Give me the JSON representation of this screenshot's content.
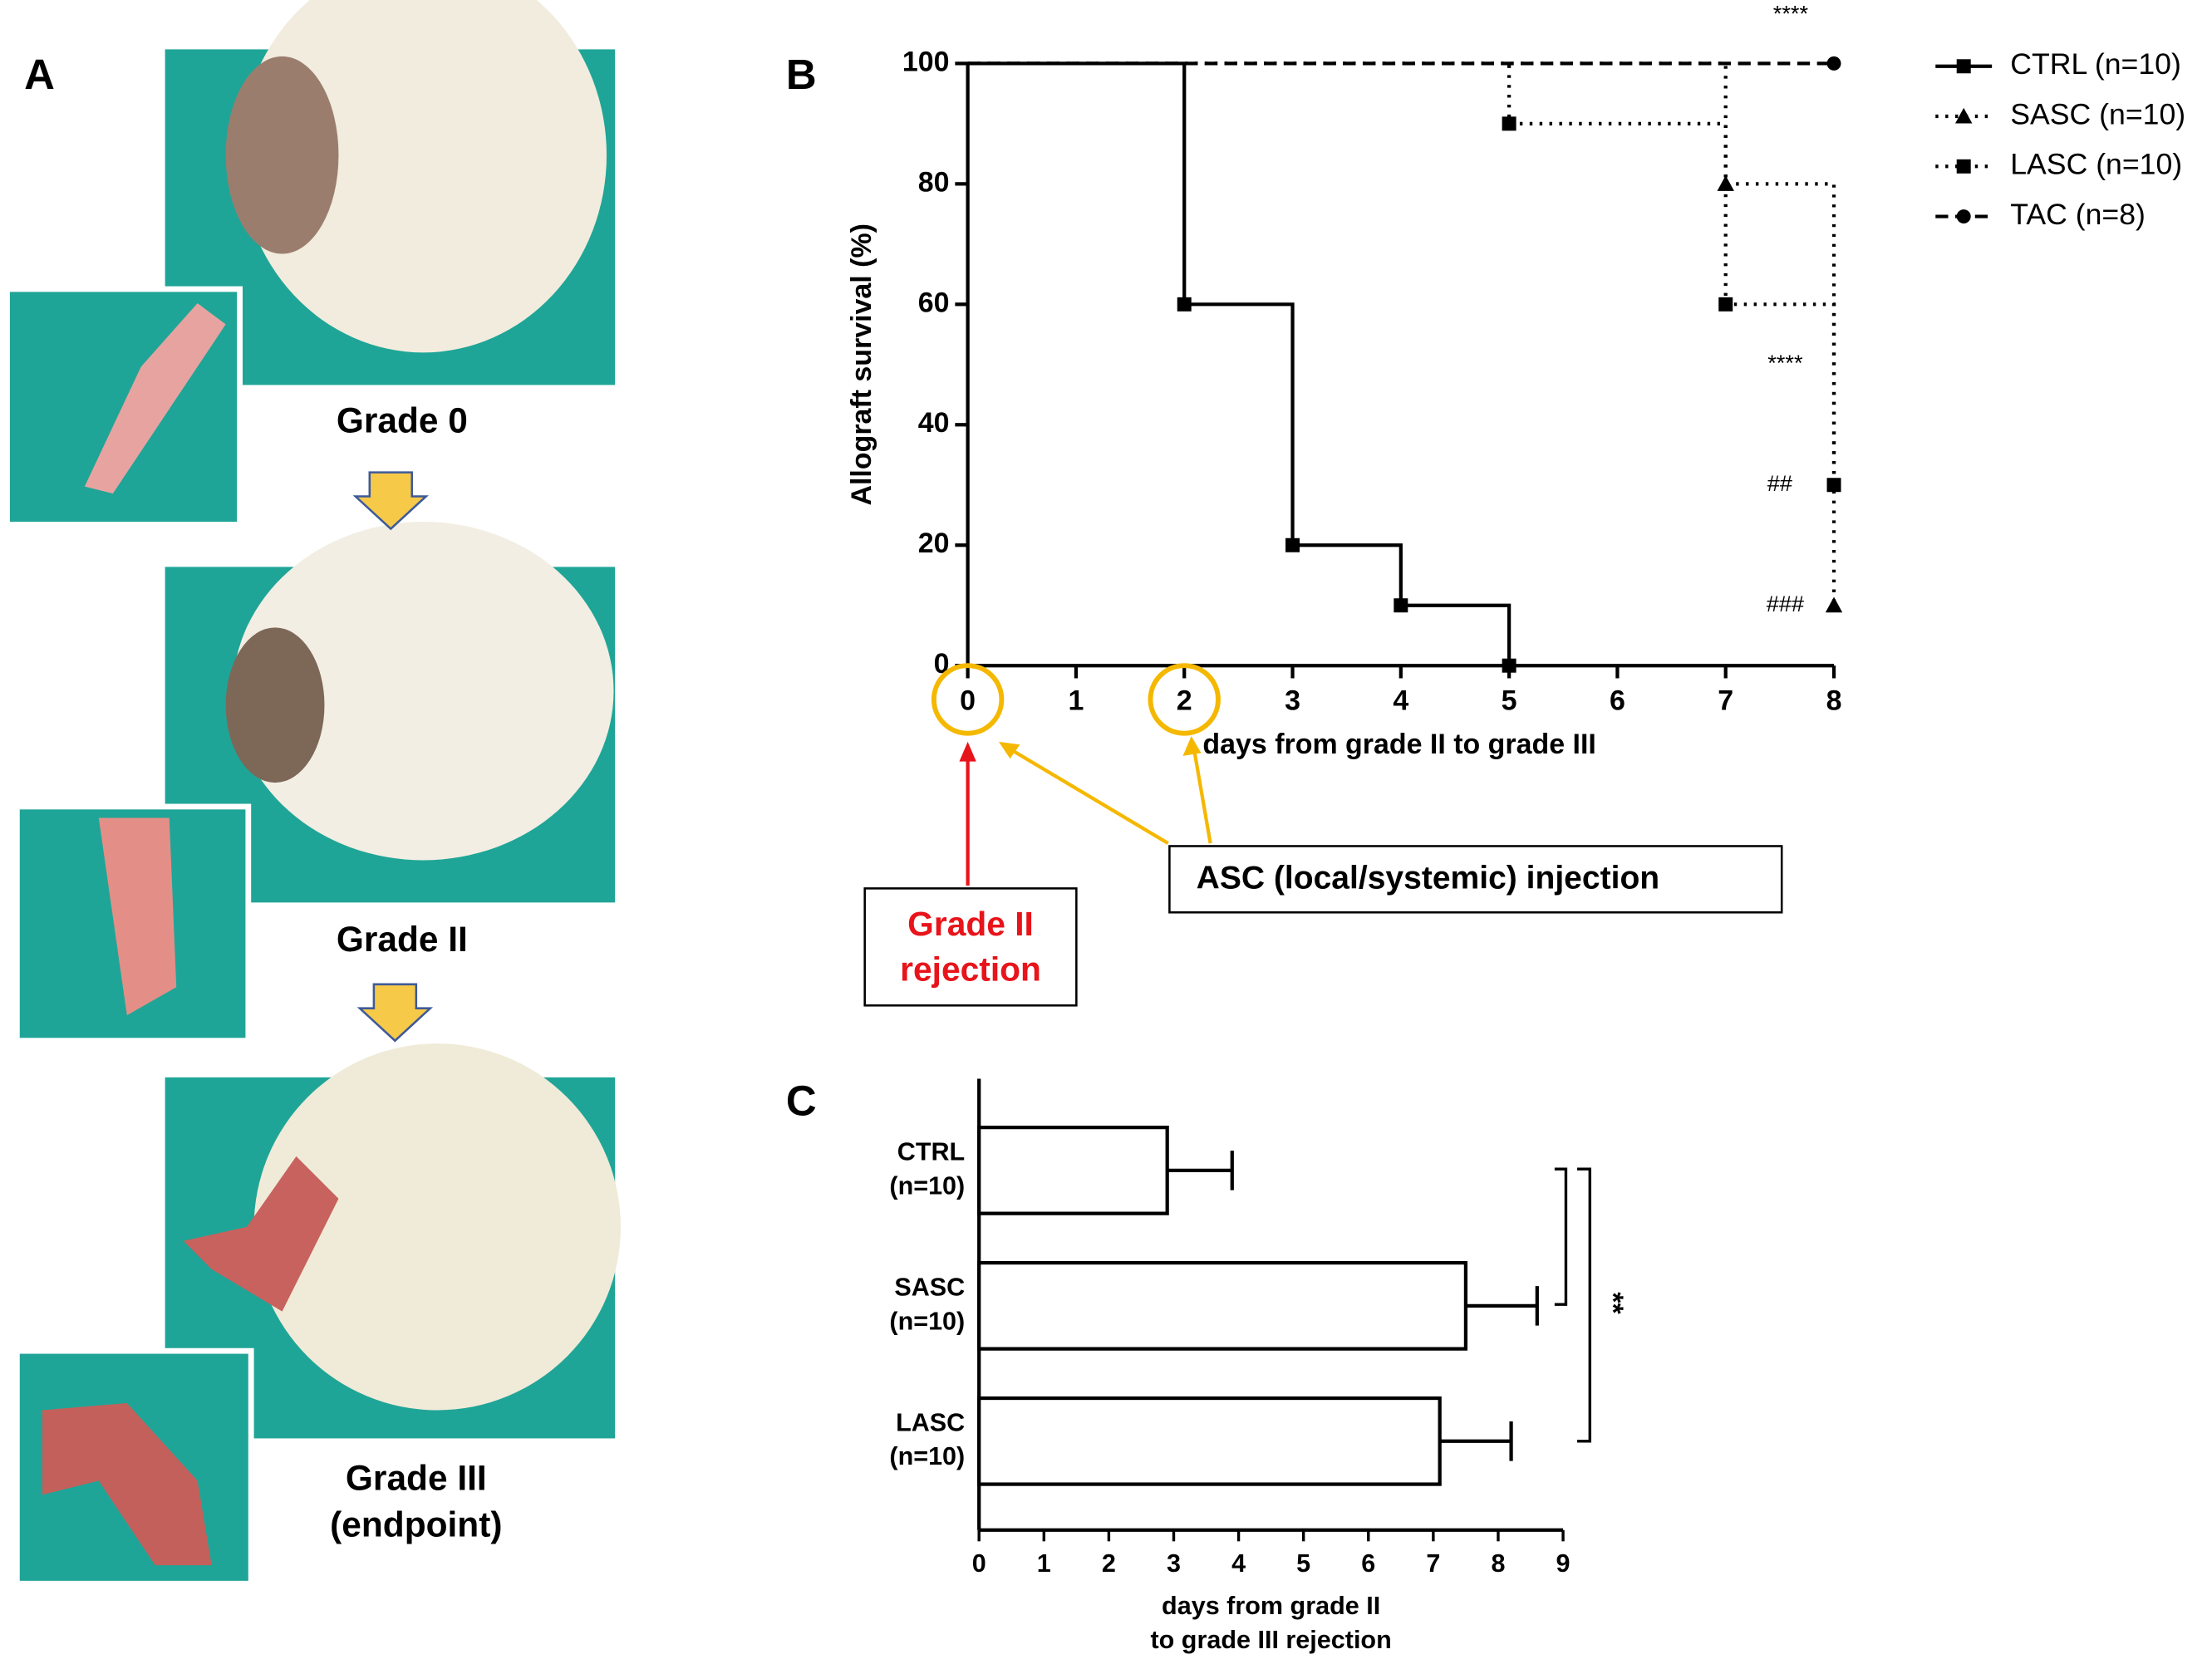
{
  "panel_labels": [
    "A",
    "B",
    "C"
  ],
  "panel_a": {
    "stages": [
      [
        "Grade 0"
      ],
      [
        "Grade II"
      ],
      [
        "Grade III",
        "(endpoint)"
      ]
    ]
  },
  "chart_data": [
    {
      "type": "line",
      "step": true,
      "ylabel": "Allograft survival (%)",
      "xlabel": "days from grade II to grade III",
      "xlim": [
        0,
        8
      ],
      "xticks": [
        0,
        1,
        2,
        3,
        4,
        5,
        6,
        7,
        8
      ],
      "ylim": [
        0,
        100
      ],
      "yticks": [
        0,
        20,
        40,
        60,
        80,
        100
      ],
      "legend": "right",
      "series": [
        {
          "name": "CTRL (n=10)",
          "color": "#000000",
          "line_style": "solid",
          "marker": "square",
          "x": [
            0,
            2,
            3,
            4,
            5
          ],
          "values": [
            100,
            60,
            20,
            10,
            0
          ]
        },
        {
          "name": "SASC (n=10)",
          "color": "#000000",
          "line_style": "dotted",
          "marker": "triangle",
          "x": [
            0,
            7,
            8
          ],
          "values": [
            100,
            80,
            10
          ]
        },
        {
          "name": "LASC (n=10)",
          "color": "#000000",
          "line_style": "dotted",
          "marker": "square",
          "x": [
            0,
            5,
            7,
            8
          ],
          "values": [
            100,
            90,
            60,
            30
          ]
        },
        {
          "name": "TAC (n=8)",
          "color": "#000000",
          "line_style": "dashed",
          "marker": "circle",
          "x": [
            0,
            8
          ],
          "values": [
            100,
            100
          ]
        }
      ],
      "annotations": [
        {
          "text": "****",
          "x": 7.6,
          "y": 108
        },
        {
          "text": "****",
          "x": 7.55,
          "y": 50
        },
        {
          "text": "##",
          "x": 7.5,
          "y": 30
        },
        {
          "text": "###",
          "x": 7.55,
          "y": 10
        }
      ],
      "highlight_x": [
        0,
        2
      ],
      "highlight_color": "#f5b800",
      "callouts": [
        {
          "lines": [
            "Grade II",
            "rejection"
          ],
          "color": "#e8141b"
        },
        {
          "lines": [
            "ASC (local/systemic) injection"
          ],
          "color": "#000000"
        }
      ]
    },
    {
      "type": "bar",
      "horizontal": true,
      "categories": [
        [
          "CTRL",
          "(n=10)"
        ],
        [
          "SASC",
          "(n=10)"
        ],
        [
          "LASC",
          "(n=10)"
        ]
      ],
      "values": [
        2.9,
        7.5,
        7.1
      ],
      "errors": [
        1.0,
        1.1,
        1.1
      ],
      "color": "#ffffff",
      "xlim": [
        0,
        9
      ],
      "xticks": [
        0,
        1,
        2,
        3,
        4,
        5,
        6,
        7,
        8,
        9
      ],
      "xlabel": [
        "days from grade II",
        "to grade III rejection"
      ],
      "significance_label": "**"
    }
  ]
}
